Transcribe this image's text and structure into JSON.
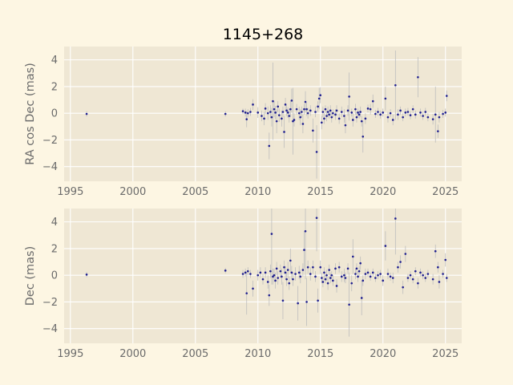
{
  "figure": {
    "title": "1145+268",
    "background": "#fdf6e3",
    "axes_background": "#efe7d4"
  },
  "chart_data": [
    {
      "type": "scatter",
      "title": "1145+268",
      "xlabel": "",
      "ylabel": "RA cos Dec (mas)",
      "xlim": [
        1994.5,
        2026.3
      ],
      "ylim": [
        -5.1,
        5.0
      ],
      "xticks": [
        1995,
        2000,
        2005,
        2010,
        2015,
        2020,
        2025
      ],
      "yticks": [
        -4,
        -2,
        0,
        2,
        4
      ],
      "grid": true,
      "error_bars": true,
      "marker_color": "#1f1f8f",
      "errorbar_color": "#bdbdbd",
      "points": [
        [
          1996.3,
          -0.05,
          0.2
        ],
        [
          2007.4,
          -0.05,
          0.2
        ],
        [
          2008.8,
          0.15,
          0.2
        ],
        [
          2009.0,
          0.05,
          0.3
        ],
        [
          2009.1,
          -0.45,
          0.6
        ],
        [
          2009.2,
          0.0,
          0.3
        ],
        [
          2009.4,
          0.1,
          0.3
        ],
        [
          2009.6,
          0.65,
          0.4
        ],
        [
          2010.0,
          0.05,
          0.4
        ],
        [
          2010.3,
          -0.2,
          0.4
        ],
        [
          2010.5,
          -0.4,
          0.5
        ],
        [
          2010.6,
          0.35,
          0.4
        ],
        [
          2010.8,
          0.0,
          0.5
        ],
        [
          2010.9,
          -2.45,
          1.0
        ],
        [
          2011.0,
          0.1,
          0.5
        ],
        [
          2011.1,
          -0.3,
          0.7
        ],
        [
          2011.2,
          0.9,
          2.9
        ],
        [
          2011.3,
          0.3,
          0.6
        ],
        [
          2011.4,
          0.05,
          0.5
        ],
        [
          2011.5,
          -0.6,
          0.9
        ],
        [
          2011.6,
          0.5,
          0.4
        ],
        [
          2011.7,
          -0.15,
          0.5
        ],
        [
          2011.9,
          -0.4,
          0.6
        ],
        [
          2012.0,
          0.1,
          0.4
        ],
        [
          2012.1,
          -1.4,
          1.2
        ],
        [
          2012.2,
          0.65,
          0.5
        ],
        [
          2012.3,
          0.2,
          0.4
        ],
        [
          2012.4,
          0.05,
          0.4
        ],
        [
          2012.5,
          -0.2,
          0.5
        ],
        [
          2012.6,
          0.3,
          0.6
        ],
        [
          2012.7,
          0.95,
          0.9
        ],
        [
          2012.8,
          -0.6,
          2.5
        ],
        [
          2012.9,
          -0.5,
          0.5
        ],
        [
          2013.1,
          0.3,
          0.4
        ],
        [
          2013.3,
          0.0,
          0.5
        ],
        [
          2013.4,
          -0.3,
          0.6
        ],
        [
          2013.5,
          0.1,
          0.4
        ],
        [
          2013.6,
          -0.8,
          0.7
        ],
        [
          2013.7,
          0.3,
          0.4
        ],
        [
          2013.8,
          0.85,
          0.8
        ],
        [
          2013.9,
          0.3,
          0.5
        ],
        [
          2014.0,
          0.0,
          0.4
        ],
        [
          2014.2,
          0.2,
          0.4
        ],
        [
          2014.4,
          -1.3,
          0.9
        ],
        [
          2014.6,
          0.1,
          0.4
        ],
        [
          2014.7,
          -2.9,
          2.0
        ],
        [
          2014.8,
          0.5,
          0.4
        ],
        [
          2014.9,
          1.1,
          0.8
        ],
        [
          2015.0,
          1.35,
          0.6
        ],
        [
          2015.1,
          -0.7,
          0.5
        ],
        [
          2015.2,
          0.1,
          0.4
        ],
        [
          2015.3,
          -0.4,
          0.4
        ],
        [
          2015.4,
          0.3,
          0.3
        ],
        [
          2015.5,
          -0.2,
          0.4
        ],
        [
          2015.6,
          0.1,
          0.4
        ],
        [
          2015.7,
          -0.1,
          0.3
        ],
        [
          2015.8,
          0.2,
          0.4
        ],
        [
          2015.9,
          -0.3,
          0.4
        ],
        [
          2016.0,
          0.0,
          0.3
        ],
        [
          2016.2,
          -0.1,
          0.4
        ],
        [
          2016.3,
          0.2,
          0.4
        ],
        [
          2016.5,
          -0.4,
          0.4
        ],
        [
          2016.7,
          0.1,
          0.4
        ],
        [
          2016.9,
          -0.2,
          0.5
        ],
        [
          2017.0,
          -0.9,
          0.6
        ],
        [
          2017.2,
          0.2,
          0.4
        ],
        [
          2017.3,
          1.25,
          1.8
        ],
        [
          2017.5,
          0.05,
          0.3
        ],
        [
          2017.6,
          -0.5,
          0.5
        ],
        [
          2017.8,
          0.3,
          0.4
        ],
        [
          2017.9,
          -0.3,
          0.4
        ],
        [
          2018.0,
          0.05,
          0.3
        ],
        [
          2018.1,
          -0.1,
          0.3
        ],
        [
          2018.2,
          0.1,
          0.4
        ],
        [
          2018.3,
          -0.6,
          0.4
        ],
        [
          2018.4,
          -1.75,
          1.2
        ],
        [
          2018.6,
          -0.4,
          0.4
        ],
        [
          2018.8,
          0.35,
          0.3
        ],
        [
          2019.0,
          0.3,
          0.4
        ],
        [
          2019.2,
          0.9,
          0.5
        ],
        [
          2019.4,
          -0.05,
          0.3
        ],
        [
          2019.6,
          0.1,
          0.3
        ],
        [
          2019.8,
          -0.1,
          0.3
        ],
        [
          2020.0,
          0.05,
          0.3
        ],
        [
          2020.2,
          1.1,
          0.9
        ],
        [
          2020.4,
          -0.3,
          0.4
        ],
        [
          2020.6,
          0.0,
          0.3
        ],
        [
          2020.8,
          -0.5,
          0.4
        ],
        [
          2021.0,
          2.1,
          2.6
        ],
        [
          2021.2,
          -0.1,
          0.4
        ],
        [
          2021.4,
          0.2,
          0.3
        ],
        [
          2021.6,
          -0.3,
          0.3
        ],
        [
          2021.8,
          0.05,
          0.3
        ],
        [
          2022.0,
          0.1,
          0.3
        ],
        [
          2022.2,
          -0.15,
          0.3
        ],
        [
          2022.4,
          0.3,
          0.3
        ],
        [
          2022.6,
          -0.1,
          0.3
        ],
        [
          2022.8,
          2.7,
          1.5
        ],
        [
          2023.0,
          0.05,
          0.3
        ],
        [
          2023.2,
          -0.2,
          0.3
        ],
        [
          2023.4,
          0.1,
          0.3
        ],
        [
          2023.6,
          -0.3,
          0.3
        ],
        [
          2024.0,
          -0.45,
          0.4
        ],
        [
          2024.2,
          -0.1,
          2.1
        ],
        [
          2024.4,
          -1.35,
          0.5
        ],
        [
          2024.5,
          -0.3,
          0.4
        ],
        [
          2024.8,
          -0.05,
          0.3
        ],
        [
          2025.0,
          0.05,
          0.3
        ],
        [
          2025.1,
          1.3,
          0.4
        ]
      ]
    },
    {
      "type": "scatter",
      "xlabel": "",
      "ylabel": "Dec (mas)",
      "xlim": [
        1994.5,
        2026.3
      ],
      "ylim": [
        -5.1,
        5.0
      ],
      "xticks": [
        1995,
        2000,
        2005,
        2010,
        2015,
        2020,
        2025
      ],
      "yticks": [
        -4,
        -2,
        0,
        2,
        4
      ],
      "grid": true,
      "error_bars": true,
      "marker_color": "#1f1f8f",
      "errorbar_color": "#bdbdbd",
      "points": [
        [
          1996.3,
          0.05,
          0.2
        ],
        [
          2007.4,
          0.35,
          0.2
        ],
        [
          2008.8,
          0.1,
          0.3
        ],
        [
          2009.0,
          0.2,
          0.3
        ],
        [
          2009.1,
          -1.35,
          1.6
        ],
        [
          2009.2,
          0.3,
          0.3
        ],
        [
          2009.4,
          0.1,
          0.3
        ],
        [
          2009.6,
          -1.0,
          0.6
        ],
        [
          2010.0,
          0.0,
          0.4
        ],
        [
          2010.2,
          0.2,
          0.4
        ],
        [
          2010.4,
          -0.3,
          0.4
        ],
        [
          2010.6,
          0.2,
          0.4
        ],
        [
          2010.8,
          -0.5,
          0.5
        ],
        [
          2010.9,
          -1.5,
          0.8
        ],
        [
          2011.0,
          0.3,
          0.5
        ],
        [
          2011.1,
          3.1,
          3.8
        ],
        [
          2011.2,
          -0.1,
          0.6
        ],
        [
          2011.3,
          0.0,
          0.5
        ],
        [
          2011.4,
          -0.4,
          0.6
        ],
        [
          2011.5,
          0.5,
          0.5
        ],
        [
          2011.6,
          -0.2,
          0.5
        ],
        [
          2011.8,
          0.3,
          0.5
        ],
        [
          2011.9,
          -0.1,
          0.6
        ],
        [
          2012.0,
          -1.9,
          1.4
        ],
        [
          2012.1,
          0.6,
          0.5
        ],
        [
          2012.2,
          0.2,
          0.5
        ],
        [
          2012.3,
          -0.3,
          0.5
        ],
        [
          2012.4,
          0.4,
          0.6
        ],
        [
          2012.5,
          -0.6,
          0.5
        ],
        [
          2012.6,
          1.1,
          0.9
        ],
        [
          2012.7,
          0.2,
          0.5
        ],
        [
          2012.8,
          -0.3,
          0.5
        ],
        [
          2013.0,
          0.1,
          0.5
        ],
        [
          2013.2,
          -2.1,
          1.3
        ],
        [
          2013.3,
          0.2,
          0.5
        ],
        [
          2013.4,
          -0.1,
          0.5
        ],
        [
          2013.6,
          0.4,
          0.5
        ],
        [
          2013.7,
          1.9,
          1.4
        ],
        [
          2013.8,
          3.3,
          3.6
        ],
        [
          2013.9,
          -2.0,
          1.8
        ],
        [
          2014.0,
          0.6,
          0.5
        ],
        [
          2014.2,
          0.1,
          0.5
        ],
        [
          2014.4,
          0.6,
          0.5
        ],
        [
          2014.6,
          -0.1,
          0.4
        ],
        [
          2014.7,
          4.3,
          2.5
        ],
        [
          2014.8,
          -1.9,
          0.9
        ],
        [
          2015.0,
          0.6,
          0.5
        ],
        [
          2015.1,
          -0.2,
          0.4
        ],
        [
          2015.2,
          -0.5,
          0.4
        ],
        [
          2015.3,
          0.2,
          0.4
        ],
        [
          2015.4,
          -0.3,
          0.3
        ],
        [
          2015.5,
          0.0,
          0.4
        ],
        [
          2015.6,
          -0.6,
          0.5
        ],
        [
          2015.7,
          0.4,
          0.4
        ],
        [
          2015.8,
          -0.2,
          0.4
        ],
        [
          2015.9,
          0.0,
          0.3
        ],
        [
          2016.0,
          -0.4,
          0.4
        ],
        [
          2016.2,
          0.5,
          0.4
        ],
        [
          2016.3,
          -0.8,
          0.5
        ],
        [
          2016.5,
          0.6,
          0.4
        ],
        [
          2016.7,
          -0.1,
          0.4
        ],
        [
          2016.9,
          0.0,
          0.5
        ],
        [
          2017.0,
          -0.2,
          0.4
        ],
        [
          2017.2,
          0.5,
          0.4
        ],
        [
          2017.3,
          -2.2,
          2.4
        ],
        [
          2017.5,
          -0.6,
          0.6
        ],
        [
          2017.6,
          1.4,
          1.3
        ],
        [
          2017.8,
          0.1,
          0.4
        ],
        [
          2017.9,
          0.5,
          0.4
        ],
        [
          2018.0,
          -0.1,
          0.4
        ],
        [
          2018.1,
          0.3,
          0.4
        ],
        [
          2018.2,
          0.9,
          0.5
        ],
        [
          2018.3,
          -1.7,
          1.3
        ],
        [
          2018.4,
          -0.4,
          0.4
        ],
        [
          2018.6,
          0.1,
          0.4
        ],
        [
          2018.8,
          0.2,
          0.3
        ],
        [
          2019.0,
          -0.1,
          0.3
        ],
        [
          2019.2,
          0.2,
          0.3
        ],
        [
          2019.4,
          -0.2,
          0.3
        ],
        [
          2019.6,
          0.0,
          0.3
        ],
        [
          2019.8,
          0.1,
          0.3
        ],
        [
          2020.0,
          -0.4,
          0.4
        ],
        [
          2020.2,
          2.2,
          1.1
        ],
        [
          2020.4,
          0.1,
          0.4
        ],
        [
          2020.6,
          -0.1,
          0.3
        ],
        [
          2020.8,
          -0.2,
          0.4
        ],
        [
          2021.0,
          4.25,
          2.7
        ],
        [
          2021.2,
          0.6,
          0.4
        ],
        [
          2021.4,
          1.0,
          0.5
        ],
        [
          2021.6,
          -0.9,
          0.5
        ],
        [
          2021.8,
          1.6,
          0.6
        ],
        [
          2022.0,
          -0.2,
          0.3
        ],
        [
          2022.2,
          0.0,
          0.3
        ],
        [
          2022.4,
          -0.3,
          0.3
        ],
        [
          2022.6,
          0.3,
          0.3
        ],
        [
          2022.8,
          -0.6,
          0.4
        ],
        [
          2023.0,
          0.2,
          0.3
        ],
        [
          2023.2,
          0.0,
          0.3
        ],
        [
          2023.4,
          -0.2,
          0.3
        ],
        [
          2023.6,
          0.1,
          0.3
        ],
        [
          2024.0,
          -0.3,
          0.4
        ],
        [
          2024.2,
          1.8,
          0.5
        ],
        [
          2024.4,
          0.6,
          0.4
        ],
        [
          2024.5,
          -0.5,
          0.5
        ],
        [
          2024.8,
          0.1,
          0.3
        ],
        [
          2025.0,
          1.15,
          0.5
        ],
        [
          2025.1,
          -0.2,
          0.3
        ]
      ]
    }
  ]
}
